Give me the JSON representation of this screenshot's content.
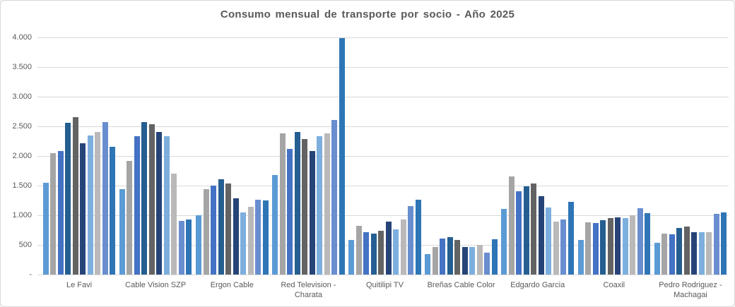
{
  "chart_data": {
    "type": "bar",
    "title": "Consumo mensual de transporte por socio - Año 2025",
    "xlabel": "",
    "ylabel": "",
    "ylim": [
      0,
      4000
    ],
    "grid": true,
    "legend": "none",
    "yticks": [
      {
        "value": 4000,
        "label": "4.000"
      },
      {
        "value": 3500,
        "label": "3.500"
      },
      {
        "value": 3000,
        "label": "3.000"
      },
      {
        "value": 2500,
        "label": "2.500"
      },
      {
        "value": 2000,
        "label": "2.000"
      },
      {
        "value": 1500,
        "label": "1.500"
      },
      {
        "value": 1000,
        "label": "1.000"
      },
      {
        "value": 500,
        "label": "500"
      },
      {
        "value": 0,
        "label": "-"
      }
    ],
    "categories": [
      "Le Favi",
      "Cable Vision SZP",
      "Ergon Cable",
      "Red Television - Charata",
      "Quitilipi TV",
      "Breñas Cable Color",
      "Edgardo Garcia",
      "Coaxil",
      "Pedro Rodriguez - Machagai"
    ],
    "series": [
      {
        "color": "#5B9BD5",
        "values": [
          1550,
          1440,
          1000,
          1680,
          580,
          350,
          1110,
          580,
          540
        ]
      },
      {
        "color": "#A5A5A5",
        "values": [
          2050,
          1920,
          1440,
          2380,
          820,
          460,
          1650,
          880,
          690
        ]
      },
      {
        "color": "#4472C4",
        "values": [
          2080,
          2330,
          1500,
          2120,
          720,
          610,
          1400,
          870,
          680
        ]
      },
      {
        "color": "#255E91",
        "values": [
          2560,
          2570,
          1610,
          2400,
          690,
          630,
          1490,
          920,
          780
        ]
      },
      {
        "color": "#636363",
        "values": [
          2660,
          2530,
          1540,
          2290,
          740,
          580,
          1530,
          950,
          810
        ]
      },
      {
        "color": "#264478",
        "values": [
          2210,
          2400,
          1280,
          2080,
          890,
          470,
          1320,
          960,
          720
        ]
      },
      {
        "color": "#7CAFDD",
        "values": [
          2350,
          2330,
          1050,
          2330,
          760,
          470,
          1130,
          950,
          720
        ]
      },
      {
        "color": "#B9B9B9",
        "values": [
          2410,
          1700,
          1140,
          2380,
          930,
          500,
          890,
          1000,
          720
        ]
      },
      {
        "color": "#698ED0",
        "values": [
          2570,
          910,
          1260,
          2610,
          1150,
          370,
          930,
          1120,
          1020
        ]
      },
      {
        "color": "#2E75B6",
        "values": [
          2150,
          930,
          1250,
          3990,
          1260,
          600,
          1230,
          1040,
          1050
        ]
      }
    ]
  },
  "styles": {
    "title_color": "#595959",
    "axis_label_color": "#595959",
    "gridline_color": "#D9D9D9",
    "border_color": "#D9D9D9",
    "background": "#FFFFFF"
  }
}
